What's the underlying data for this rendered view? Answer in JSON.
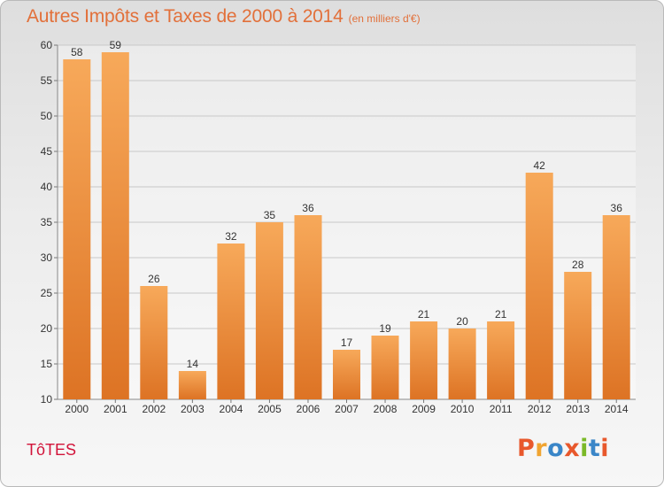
{
  "header": {
    "title": "Autres Impôts et Taxes de 2000 à 2014",
    "subtitle": "(en milliers d'€)"
  },
  "footer": {
    "commune": "TôTES",
    "logo": "Proxiti"
  },
  "colors": {
    "title": "#e2703a",
    "commune": "#d2143a",
    "bar_light": "#f7a95a",
    "bar_dark": "#dd7324",
    "logo_letters": [
      "#e8582c",
      "#f0a431",
      "#3a86c8",
      "#e8582c",
      "#7bb928",
      "#3a86c8",
      "#e8582c"
    ]
  },
  "chart_data": {
    "type": "bar",
    "categories": [
      "2000",
      "2001",
      "2002",
      "2003",
      "2004",
      "2005",
      "2006",
      "2007",
      "2008",
      "2009",
      "2010",
      "2011",
      "2012",
      "2013",
      "2014"
    ],
    "values": [
      58,
      59,
      26,
      14,
      32,
      35,
      36,
      17,
      19,
      21,
      20,
      21,
      42,
      28,
      36
    ],
    "yticks": [
      "10",
      "15",
      "20",
      "25",
      "30",
      "35",
      "40",
      "45",
      "50",
      "55",
      "60"
    ],
    "ylim": [
      10,
      60
    ],
    "grid": true,
    "data_labels": true
  }
}
